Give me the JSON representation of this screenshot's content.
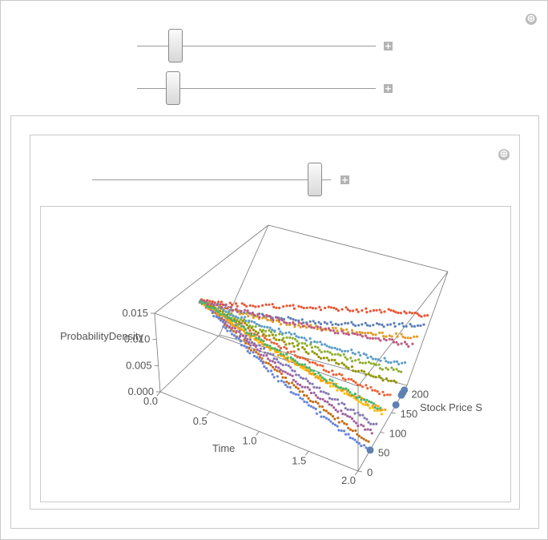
{
  "controls": {
    "expand_icon": "⊕",
    "step_icon": "+",
    "slider1_fraction": 0.14,
    "slider2_fraction": 0.13,
    "slider3_fraction": 0.96
  },
  "chart_data": {
    "type": "scatter",
    "projection": "3d",
    "xlabel": "Time",
    "ylabel": "Stock Price S",
    "zlabel": "ProbabilityDensity",
    "xlim": [
      0.0,
      2.0
    ],
    "ylim": [
      0,
      220
    ],
    "zlim": [
      0.0,
      0.015
    ],
    "x_ticks": [
      "0.0",
      "0.5",
      "1.0",
      "1.5",
      "2.0"
    ],
    "y_ticks": [
      "0",
      "50",
      "100",
      "150",
      "200"
    ],
    "z_ticks": [
      "0.000",
      "0.005",
      "0.010",
      "0.015"
    ],
    "x_tick_values": [
      0.0,
      0.5,
      1.0,
      1.5,
      2.0
    ],
    "y_tick_values": [
      0,
      50,
      100,
      150,
      200
    ],
    "z_tick_values": [
      0.0,
      0.005,
      0.01,
      0.015
    ],
    "series_colors": [
      "#5e81b5",
      "#e19c24",
      "#8fb032",
      "#eb6235",
      "#8778b3",
      "#c56e1a",
      "#5d9ec7",
      "#ffbf00",
      "#a5609d",
      "#929600",
      "#e95536",
      "#6685d9",
      "#f89f13",
      "#bc5b80",
      "#47b66d"
    ],
    "series": [
      {
        "end": [
          2.0,
          200,
          0.0
        ],
        "points": [
          [
            0.0,
            100,
            0.0105
          ],
          [
            0.2,
            107,
            0.0102
          ],
          [
            0.4,
            115,
            0.0098
          ],
          [
            0.6,
            125,
            0.0095
          ],
          [
            0.8,
            136,
            0.0093
          ],
          [
            1.0,
            147,
            0.0091
          ],
          [
            1.2,
            160,
            0.009
          ],
          [
            1.4,
            172,
            0.0089
          ],
          [
            1.6,
            184,
            0.0088
          ],
          [
            1.8,
            195,
            0.0088
          ],
          [
            2.0,
            205,
            0.0088
          ]
        ]
      },
      {
        "end": [
          2.0,
          200,
          0.0
        ],
        "points": [
          [
            0.0,
            100,
            0.0105
          ],
          [
            0.2,
            105,
            0.0101
          ],
          [
            0.4,
            112,
            0.0097
          ],
          [
            0.6,
            120,
            0.0093
          ],
          [
            0.8,
            130,
            0.009
          ],
          [
            1.0,
            140,
            0.0088
          ],
          [
            1.2,
            150,
            0.0087
          ],
          [
            1.4,
            160,
            0.0085
          ],
          [
            1.6,
            170,
            0.0084
          ],
          [
            1.8,
            180,
            0.0083
          ],
          [
            2.0,
            190,
            0.0082
          ]
        ]
      },
      {
        "end": [
          2.0,
          200,
          0.0
        ],
        "points": [
          [
            0.0,
            100,
            0.0105
          ],
          [
            0.2,
            103,
            0.0098
          ],
          [
            0.4,
            108,
            0.009
          ],
          [
            0.6,
            114,
            0.0083
          ],
          [
            0.8,
            120,
            0.0077
          ],
          [
            1.0,
            127,
            0.0071
          ],
          [
            1.2,
            133,
            0.0066
          ],
          [
            1.4,
            140,
            0.0062
          ],
          [
            1.6,
            146,
            0.0058
          ],
          [
            1.8,
            152,
            0.0055
          ],
          [
            2.0,
            158,
            0.0052
          ]
        ]
      },
      {
        "end": [
          2.0,
          200,
          0.0
        ],
        "points": [
          [
            0.0,
            100,
            0.0105
          ],
          [
            0.2,
            101,
            0.0096
          ],
          [
            0.4,
            103,
            0.0087
          ],
          [
            0.6,
            106,
            0.0078
          ],
          [
            0.8,
            109,
            0.007
          ],
          [
            1.0,
            112,
            0.0063
          ],
          [
            1.2,
            115,
            0.0056
          ],
          [
            1.4,
            118,
            0.005
          ],
          [
            1.6,
            121,
            0.0045
          ],
          [
            1.8,
            124,
            0.004
          ],
          [
            2.0,
            127,
            0.0036
          ]
        ]
      },
      {
        "end": [
          2.0,
          200,
          0.0
        ],
        "points": [
          [
            0.0,
            100,
            0.0105
          ],
          [
            0.2,
            99,
            0.0095
          ],
          [
            0.4,
            97,
            0.0084
          ],
          [
            0.6,
            95,
            0.0074
          ],
          [
            0.8,
            93,
            0.0064
          ],
          [
            1.0,
            91,
            0.0055
          ],
          [
            1.2,
            89,
            0.0047
          ],
          [
            1.4,
            87,
            0.0039
          ],
          [
            1.6,
            85,
            0.0032
          ],
          [
            1.8,
            83,
            0.0026
          ],
          [
            2.0,
            81,
            0.002
          ]
        ]
      },
      {
        "end": [
          2.0,
          200,
          0.0
        ],
        "points": [
          [
            0.0,
            100,
            0.0105
          ],
          [
            0.2,
            97,
            0.0093
          ],
          [
            0.4,
            93,
            0.008
          ],
          [
            0.6,
            89,
            0.0068
          ],
          [
            0.8,
            84,
            0.0057
          ],
          [
            1.0,
            79,
            0.0047
          ],
          [
            1.2,
            74,
            0.0038
          ],
          [
            1.4,
            69,
            0.003
          ],
          [
            1.6,
            64,
            0.0023
          ],
          [
            1.8,
            59,
            0.0017
          ],
          [
            2.0,
            54,
            0.0012
          ]
        ]
      },
      {
        "end": [
          2.0,
          200,
          0.0
        ],
        "points": [
          [
            0.0,
            100,
            0.0105
          ],
          [
            0.2,
            104,
            0.0099
          ],
          [
            0.4,
            110,
            0.0093
          ],
          [
            0.6,
            116,
            0.0087
          ],
          [
            0.8,
            123,
            0.0081
          ],
          [
            1.0,
            130,
            0.0076
          ],
          [
            1.2,
            137,
            0.0072
          ],
          [
            1.4,
            144,
            0.0068
          ],
          [
            1.6,
            151,
            0.0065
          ],
          [
            1.8,
            158,
            0.0062
          ],
          [
            2.0,
            165,
            0.006
          ]
        ]
      },
      {
        "end": [
          2.0,
          200,
          0.0
        ],
        "points": [
          [
            0.0,
            100,
            0.0105
          ],
          [
            0.2,
            100,
            0.0095
          ],
          [
            0.4,
            100,
            0.0085
          ],
          [
            0.6,
            101,
            0.0075
          ],
          [
            0.8,
            101,
            0.0066
          ],
          [
            1.0,
            102,
            0.0058
          ],
          [
            1.2,
            102,
            0.005
          ],
          [
            1.4,
            103,
            0.0043
          ],
          [
            1.6,
            103,
            0.0036
          ],
          [
            1.8,
            104,
            0.003
          ],
          [
            2.0,
            104,
            0.0025
          ]
        ]
      },
      {
        "end": [
          2.0,
          200,
          0.0
        ],
        "points": [
          [
            0.0,
            100,
            0.0105
          ],
          [
            0.2,
            98,
            0.0094
          ],
          [
            0.4,
            95,
            0.0082
          ],
          [
            0.6,
            92,
            0.0071
          ],
          [
            0.8,
            88,
            0.006
          ],
          [
            1.0,
            85,
            0.0051
          ],
          [
            1.2,
            81,
            0.0042
          ],
          [
            1.4,
            78,
            0.0035
          ],
          [
            1.6,
            74,
            0.0028
          ],
          [
            1.8,
            71,
            0.0022
          ],
          [
            2.0,
            67,
            0.0017
          ]
        ]
      },
      {
        "end": [
          2.0,
          200,
          0.0
        ],
        "points": [
          [
            0.0,
            100,
            0.0105
          ],
          [
            0.2,
            102,
            0.0097
          ],
          [
            0.4,
            106,
            0.0089
          ],
          [
            0.6,
            110,
            0.0081
          ],
          [
            0.8,
            115,
            0.0074
          ],
          [
            1.0,
            120,
            0.0068
          ],
          [
            1.2,
            125,
            0.0062
          ],
          [
            1.4,
            130,
            0.0057
          ],
          [
            1.6,
            135,
            0.0052
          ],
          [
            1.8,
            140,
            0.0048
          ],
          [
            2.0,
            145,
            0.0044
          ]
        ]
      },
      {
        "end": [
          2.0,
          200,
          0.0
        ],
        "points": [
          [
            0.0,
            100,
            0.0105
          ],
          [
            0.2,
            108,
            0.0106
          ],
          [
            0.4,
            118,
            0.0107
          ],
          [
            0.6,
            130,
            0.0108
          ],
          [
            0.8,
            142,
            0.0108
          ],
          [
            1.0,
            154,
            0.0107
          ],
          [
            1.2,
            166,
            0.0106
          ],
          [
            1.4,
            178,
            0.0105
          ],
          [
            1.6,
            190,
            0.0103
          ],
          [
            1.8,
            200,
            0.0101
          ],
          [
            2.0,
            208,
            0.0098
          ]
        ]
      },
      {
        "end": [
          2.0,
          200,
          0.0
        ],
        "points": [
          [
            0.0,
            100,
            0.0105
          ],
          [
            0.2,
            96,
            0.0092
          ],
          [
            0.4,
            91,
            0.0078
          ],
          [
            0.6,
            86,
            0.0065
          ],
          [
            0.8,
            80,
            0.0053
          ],
          [
            1.0,
            74,
            0.0042
          ],
          [
            1.2,
            68,
            0.0033
          ],
          [
            1.4,
            62,
            0.0025
          ],
          [
            1.6,
            56,
            0.0018
          ],
          [
            1.8,
            50,
            0.0012
          ],
          [
            2.0,
            44,
            0.0008
          ]
        ]
      },
      {
        "end": [
          2.0,
          200,
          0.0
        ],
        "points": [
          [
            0.0,
            100,
            0.0105
          ],
          [
            0.2,
            101,
            0.0094
          ],
          [
            0.4,
            102,
            0.0083
          ],
          [
            0.6,
            104,
            0.0072
          ],
          [
            0.8,
            106,
            0.0062
          ],
          [
            1.0,
            108,
            0.0053
          ],
          [
            1.2,
            110,
            0.0045
          ],
          [
            1.4,
            112,
            0.0038
          ],
          [
            1.6,
            114,
            0.0031
          ],
          [
            1.8,
            116,
            0.0025
          ],
          [
            2.0,
            118,
            0.002
          ]
        ]
      },
      {
        "end": [
          2.0,
          200,
          0.0
        ],
        "points": [
          [
            0.0,
            100,
            0.0105
          ],
          [
            0.2,
            106,
            0.0103
          ],
          [
            0.4,
            113,
            0.01
          ],
          [
            0.6,
            121,
            0.0097
          ],
          [
            0.8,
            129,
            0.0094
          ],
          [
            1.0,
            137,
            0.0091
          ],
          [
            1.2,
            145,
            0.0088
          ],
          [
            1.4,
            153,
            0.0086
          ],
          [
            1.6,
            161,
            0.0083
          ],
          [
            1.8,
            169,
            0.0081
          ],
          [
            2.0,
            176,
            0.0079
          ]
        ]
      },
      {
        "end": [
          2.0,
          200,
          0.0
        ],
        "points": [
          [
            0.0,
            100,
            0.0105
          ],
          [
            0.2,
            99,
            0.0097
          ],
          [
            0.4,
            98,
            0.0089
          ],
          [
            0.6,
            97,
            0.0081
          ],
          [
            0.8,
            96,
            0.0074
          ],
          [
            1.0,
            95,
            0.0067
          ],
          [
            1.2,
            94,
            0.0061
          ],
          [
            1.4,
            93,
            0.0055
          ],
          [
            1.6,
            92,
            0.005
          ],
          [
            1.8,
            91,
            0.0045
          ],
          [
            2.0,
            90,
            0.0041
          ]
        ]
      }
    ],
    "highlight_points": [
      [
        2.0,
        208,
        0.0
      ],
      [
        2.0,
        195,
        0.0
      ],
      [
        2.0,
        200,
        0.0
      ],
      [
        2.0,
        170,
        0.0
      ],
      [
        2.0,
        54,
        0.0
      ]
    ]
  }
}
